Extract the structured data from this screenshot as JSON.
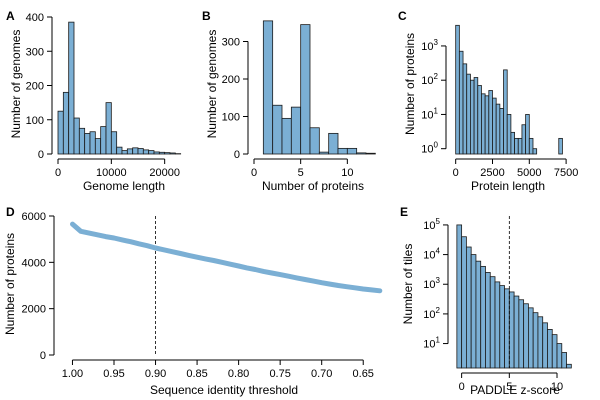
{
  "chart_data": [
    {
      "panel": "A",
      "type": "bar",
      "xlabel": "Genome length",
      "ylabel": "Number of genomes",
      "bin_edges": [
        0,
        1000,
        2000,
        3000,
        4000,
        5000,
        6000,
        7000,
        8000,
        9000,
        10000,
        11000,
        12000,
        13000,
        14000,
        15000,
        16000,
        17000,
        18000,
        19000,
        20000,
        21000,
        22000,
        23000
      ],
      "values": [
        125,
        180,
        385,
        105,
        75,
        60,
        65,
        45,
        80,
        150,
        65,
        20,
        10,
        15,
        18,
        16,
        12,
        10,
        6,
        5,
        4,
        3,
        1
      ],
      "xlim": [
        0,
        24000
      ],
      "ylim": [
        0,
        400
      ],
      "xticks": [
        0,
        10000,
        20000
      ],
      "xtick_labels": [
        "0",
        "10000",
        "20000"
      ],
      "yticks": [
        0,
        100,
        200,
        300,
        400
      ],
      "ytick_labels": [
        "0",
        "100",
        "200",
        "300",
        "400"
      ]
    },
    {
      "panel": "B",
      "type": "bar",
      "xlabel": "Number of proteins",
      "ylabel": "Number of genomes",
      "bin_edges": [
        1,
        2,
        3,
        4,
        5,
        6,
        7,
        8,
        9,
        10,
        11,
        12,
        13
      ],
      "values": [
        355,
        130,
        95,
        125,
        345,
        70,
        5,
        55,
        15,
        15,
        3,
        2
      ],
      "xlim": [
        0,
        13.5
      ],
      "ylim": [
        0,
        360
      ],
      "xticks": [
        0,
        5,
        10
      ],
      "xtick_labels": [
        "0",
        "5",
        "10"
      ],
      "yticks": [
        0,
        100,
        200,
        300
      ],
      "ytick_labels": [
        "0",
        "100",
        "200",
        "300"
      ]
    },
    {
      "panel": "C",
      "type": "bar",
      "scale": "log",
      "xlabel": "Protein length",
      "ylabel": "Number of proteins",
      "bin_edges": [
        0,
        250,
        500,
        750,
        1000,
        1250,
        1500,
        1750,
        2000,
        2250,
        2500,
        2750,
        3000,
        3250,
        3500,
        3750,
        4000,
        4250,
        4500,
        4750,
        5000,
        5250,
        5500,
        5750,
        6000,
        6250,
        6500,
        6750,
        7000,
        7250,
        7500
      ],
      "values": [
        4000,
        700,
        300,
        150,
        100,
        120,
        70,
        40,
        35,
        50,
        30,
        20,
        15,
        200,
        10,
        3,
        2,
        2,
        5,
        10,
        2,
        1,
        0,
        0,
        0,
        0,
        0,
        0,
        2,
        0
      ],
      "xlim": [
        -250,
        7900
      ],
      "ylim": [
        0.7,
        7000
      ],
      "xticks": [
        0,
        2500,
        5000,
        7500
      ],
      "xtick_labels": [
        "0",
        "2500",
        "5000",
        "7500"
      ],
      "yticks": [
        1,
        10,
        100,
        1000
      ],
      "ytick_labels": [
        {
          "base": "10",
          "exp": "0"
        },
        {
          "base": "10",
          "exp": "1"
        },
        {
          "base": "10",
          "exp": "2"
        },
        {
          "base": "10",
          "exp": "3"
        }
      ]
    },
    {
      "panel": "D",
      "type": "line",
      "xlabel": "Sequence identity threshold",
      "ylabel": "Number of proteins",
      "x": [
        1.0,
        0.99,
        0.98,
        0.97,
        0.96,
        0.95,
        0.94,
        0.93,
        0.92,
        0.91,
        0.9,
        0.89,
        0.88,
        0.87,
        0.86,
        0.85,
        0.84,
        0.83,
        0.82,
        0.81,
        0.8,
        0.79,
        0.78,
        0.77,
        0.76,
        0.75,
        0.74,
        0.73,
        0.72,
        0.71,
        0.7,
        0.69,
        0.68,
        0.67,
        0.66,
        0.65,
        0.64,
        0.63
      ],
      "y": [
        5650,
        5340,
        5260,
        5190,
        5110,
        5050,
        4970,
        4890,
        4800,
        4720,
        4620,
        4540,
        4460,
        4380,
        4300,
        4220,
        4150,
        4080,
        4000,
        3920,
        3840,
        3760,
        3690,
        3610,
        3540,
        3470,
        3400,
        3330,
        3260,
        3190,
        3120,
        3060,
        3000,
        2950,
        2900,
        2850,
        2810,
        2770
      ],
      "xlim": [
        1.015,
        0.625
      ],
      "ylim": [
        0,
        6000
      ],
      "xticks": [
        1.0,
        0.95,
        0.9,
        0.85,
        0.8,
        0.75,
        0.7,
        0.65
      ],
      "xtick_labels": [
        "1.00",
        "0.95",
        "0.90",
        "0.85",
        "0.80",
        "0.75",
        "0.70",
        "0.65"
      ],
      "yticks": [
        0,
        2000,
        4000,
        6000
      ],
      "ytick_labels": [
        "0",
        "2000",
        "4000",
        "6000"
      ],
      "vline": 0.9
    },
    {
      "panel": "E",
      "type": "bar",
      "scale": "log",
      "xlabel": "PADDLE z-score",
      "ylabel": "Number of tiles",
      "bin_edges": [
        -0.5,
        0,
        0.5,
        1,
        1.5,
        2,
        2.5,
        3,
        3.5,
        4,
        4.5,
        5,
        5.5,
        6,
        6.5,
        7,
        7.5,
        8,
        8.5,
        9,
        9.5,
        10,
        10.5,
        11,
        11.5
      ],
      "values": [
        100000,
        40000,
        18000,
        10000,
        6000,
        4000,
        2500,
        1800,
        1200,
        900,
        700,
        550,
        400,
        300,
        220,
        160,
        110,
        80,
        50,
        30,
        20,
        10,
        5,
        2
      ],
      "xlim": [
        -0.8,
        12.2
      ],
      "ylim": [
        1.5,
        200000
      ],
      "xticks": [
        0,
        5,
        10
      ],
      "xtick_labels": [
        "0",
        "5",
        "10"
      ],
      "yticks": [
        10,
        100,
        1000,
        10000,
        100000
      ],
      "ytick_labels": [
        {
          "base": "10",
          "exp": "1"
        },
        {
          "base": "10",
          "exp": "2"
        },
        {
          "base": "10",
          "exp": "3"
        },
        {
          "base": "10",
          "exp": "4"
        },
        {
          "base": "10",
          "exp": "5"
        }
      ],
      "vline": 5
    }
  ]
}
